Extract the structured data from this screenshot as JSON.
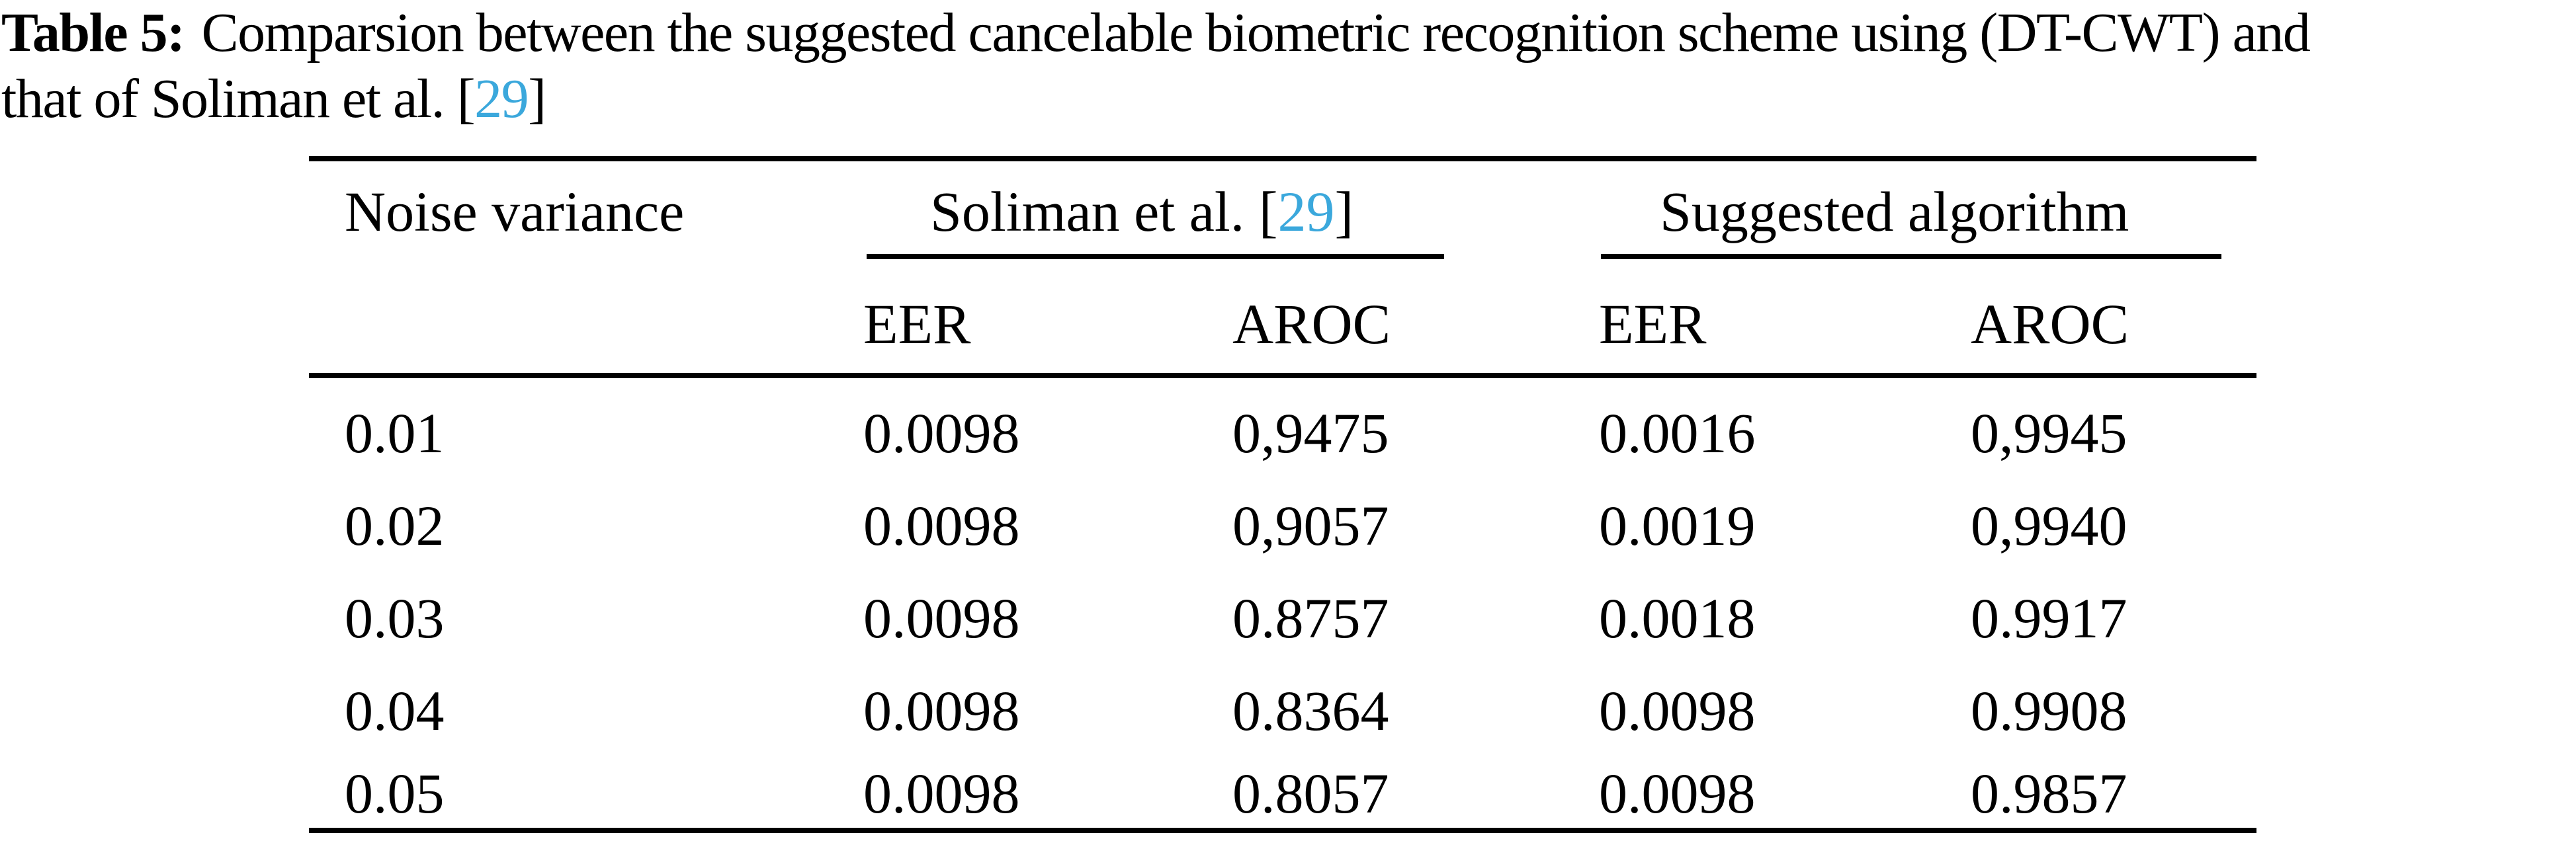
{
  "caption": {
    "label": "Table 5:",
    "line1": "Comparsion between the suggested cancelable biometric recognition scheme using (DT-CWT) and",
    "line2_prefix": "that of Soliman et al. ",
    "ref_open": "[",
    "ref_number": "29",
    "ref_close": "]"
  },
  "table": {
    "columns": {
      "noise_header": "Noise variance",
      "group1_prefix": "Soliman et al. ",
      "group1_ref_open": "[",
      "group1_ref": "29",
      "group1_ref_close": "]",
      "group2": "Suggested algorithm",
      "sub": [
        "EER",
        "AROC",
        "EER",
        "AROC"
      ]
    },
    "rows": [
      {
        "noise": "0.01",
        "s_eer": "0.0098",
        "s_aroc": "0,9475",
        "p_eer": "0.0016",
        "p_aroc": "0,9945"
      },
      {
        "noise": "0.02",
        "s_eer": "0.0098",
        "s_aroc": "0,9057",
        "p_eer": "0.0019",
        "p_aroc": "0,9940"
      },
      {
        "noise": "0.03",
        "s_eer": "0.0098",
        "s_aroc": "0.8757",
        "p_eer": "0.0018",
        "p_aroc": "0.9917"
      },
      {
        "noise": "0.04",
        "s_eer": "0.0098",
        "s_aroc": "0.8364",
        "p_eer": "0.0098",
        "p_aroc": "0.9908"
      },
      {
        "noise": "0.05",
        "s_eer": "0.0098",
        "s_aroc": "0.8057",
        "p_eer": "0.0098",
        "p_aroc": "0.9857"
      }
    ]
  },
  "colors": {
    "text": "#000000",
    "rule": "#000000",
    "citation_link": "#3ba8dc",
    "background": "#ffffff"
  }
}
